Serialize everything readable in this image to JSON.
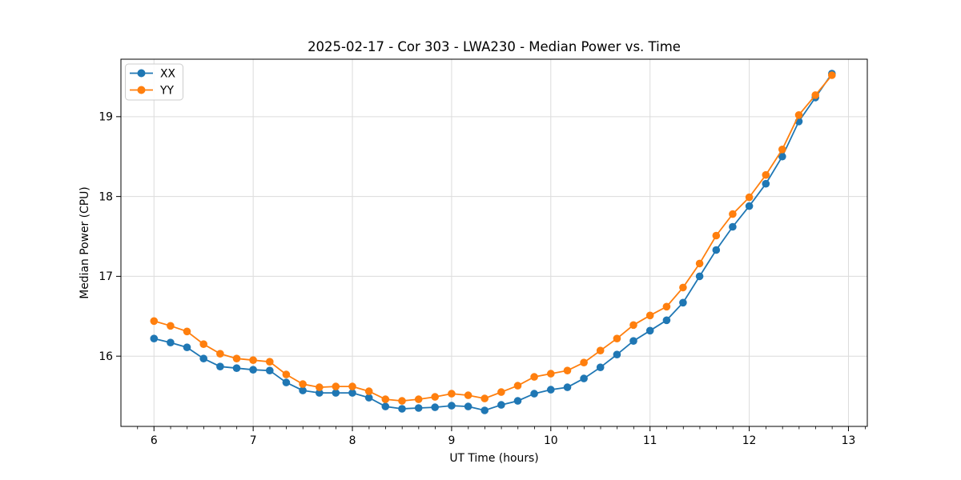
{
  "title": "2025-02-17 - Cor 303 - LWA230 - Median Power vs. Time",
  "legend": {
    "position": "upper left",
    "items": [
      {
        "label": "XX",
        "color": "#1f77b4"
      },
      {
        "label": "YY",
        "color": "#ff7f0e"
      }
    ]
  },
  "colors": {
    "series_xx": "#1f77b4",
    "series_yy": "#ff7f0e",
    "grid": "#dcdcdc",
    "spine": "#000000",
    "background": "#ffffff"
  },
  "chart_data": {
    "type": "line",
    "title": "2025-02-17 - Cor 303 - LWA230 - Median Power vs. Time",
    "xlabel": "UT Time (hours)",
    "ylabel": "Median Power (CPU)",
    "xlim": [
      5.667,
      13.19
    ],
    "ylim": [
      15.12,
      19.72
    ],
    "xticks": [
      6,
      7,
      8,
      9,
      10,
      11,
      12,
      13
    ],
    "yticks": [
      16,
      17,
      18,
      19
    ],
    "x_minor_tick_step": 0.1667,
    "grid": true,
    "legend_position": "upper left",
    "marker": "o",
    "x": [
      6.0,
      6.167,
      6.333,
      6.5,
      6.667,
      6.833,
      7.0,
      7.167,
      7.333,
      7.5,
      7.667,
      7.833,
      8.0,
      8.167,
      8.333,
      8.5,
      8.667,
      8.833,
      9.0,
      9.167,
      9.333,
      9.5,
      9.667,
      9.833,
      10.0,
      10.167,
      10.333,
      10.5,
      10.667,
      10.833,
      11.0,
      11.167,
      11.333,
      11.5,
      11.667,
      11.833,
      12.0,
      12.167,
      12.333,
      12.5,
      12.667,
      12.833
    ],
    "series": [
      {
        "name": "XX",
        "color": "#1f77b4",
        "values": [
          16.22,
          16.17,
          16.11,
          15.97,
          15.87,
          15.85,
          15.83,
          15.82,
          15.67,
          15.57,
          15.54,
          15.54,
          15.54,
          15.48,
          15.37,
          15.34,
          15.35,
          15.36,
          15.38,
          15.37,
          15.32,
          15.39,
          15.44,
          15.53,
          15.58,
          15.61,
          15.72,
          15.86,
          16.02,
          16.19,
          16.32,
          16.45,
          16.67,
          17.0,
          17.33,
          17.62,
          17.88,
          18.16,
          18.5,
          18.94,
          19.24,
          19.54
        ]
      },
      {
        "name": "YY",
        "color": "#ff7f0e",
        "values": [
          16.44,
          16.38,
          16.31,
          16.15,
          16.03,
          15.97,
          15.95,
          15.93,
          15.77,
          15.65,
          15.61,
          15.62,
          15.62,
          15.56,
          15.46,
          15.44,
          15.46,
          15.49,
          15.53,
          15.51,
          15.47,
          15.55,
          15.63,
          15.74,
          15.78,
          15.82,
          15.92,
          16.07,
          16.22,
          16.39,
          16.51,
          16.62,
          16.86,
          17.16,
          17.51,
          17.78,
          17.99,
          18.27,
          18.59,
          19.02,
          19.27,
          19.52
        ]
      }
    ]
  }
}
